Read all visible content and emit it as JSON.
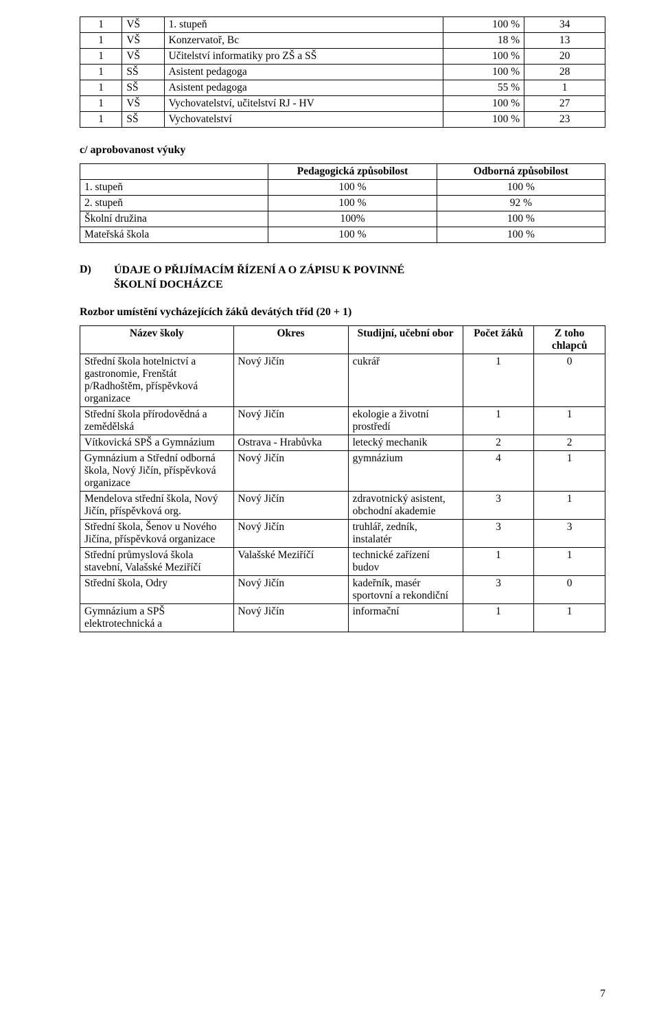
{
  "table1": {
    "rows": [
      [
        "1",
        "VŠ",
        "1. stupeň",
        "100 %",
        "34"
      ],
      [
        "1",
        "VŠ",
        "Konzervatoř, Bc",
        "18 %",
        "13"
      ],
      [
        "1",
        "VŠ",
        "Učitelství informatiky pro ZŠ a SŠ",
        "100 %",
        "20"
      ],
      [
        "1",
        "SŠ",
        "Asistent pedagoga",
        "100 %",
        "28"
      ],
      [
        "1",
        "SŠ",
        "Asistent pedagoga",
        "55 %",
        "1"
      ],
      [
        "1",
        "VŠ",
        "Vychovatelství, učitelství RJ - HV",
        "100 %",
        "27"
      ],
      [
        "1",
        "SŠ",
        "Vychovatelství",
        "100 %",
        "23"
      ]
    ]
  },
  "section_c": "c/ aprobovanost výuky",
  "table2": {
    "header": [
      "",
      "Pedagogická způsobilost",
      "Odborná způsobilost"
    ],
    "rows": [
      [
        "1. stupeň",
        "100 %",
        "100 %"
      ],
      [
        "2. stupeň",
        "100 %",
        "92 %"
      ],
      [
        "Školní družina",
        "100%",
        "100 %"
      ],
      [
        "Mateřská škola",
        "100 %",
        "100 %"
      ]
    ]
  },
  "section_d": {
    "label": "D)",
    "title_line1": "ÚDAJE O PŘIJÍMACÍM ŘÍZENÍ A O ZÁPISU K POVINNÉ",
    "title_line2": "ŠKOLNÍ DOCHÁZCE",
    "rozbor": "Rozbor umístění vycházejících žáků devátých tříd (20 + 1)"
  },
  "table3": {
    "header": [
      "Název školy",
      "Okres",
      "Studijní, učební obor",
      "Počet žáků",
      "Z  toho chlapců"
    ],
    "rows": [
      [
        "Střední škola hotelnictví a gastronomie,\nFrenštát p/Radhoštěm, příspěvková organizace",
        "Nový Jičín",
        "cukrář",
        "1",
        "0"
      ],
      [
        "Střední škola přírodovědná a zemědělská",
        "Nový Jičín",
        "ekologie a životní prostředí",
        "1",
        "1"
      ],
      [
        "Vítkovická SPŠ a Gymnázium",
        "Ostrava - Hrabůvka",
        "letecký mechanik",
        "2",
        "2"
      ],
      [
        "Gymnázium a Střední odborná škola, Nový Jičín, příspěvková organizace",
        "Nový Jičín",
        "gymnázium",
        "4",
        "1"
      ],
      [
        "Mendelova střední škola, Nový Jičín, příspěvková org.",
        "Nový Jičín",
        "zdravotnický asistent, obchodní akademie",
        "3",
        "1"
      ],
      [
        "Střední škola, Šenov u Nového Jičína, příspěvková organizace",
        "Nový Jičín",
        "truhlář, zedník, instalatér",
        "3",
        "3"
      ],
      [
        "Střední průmyslová škola stavební, Valašské Meziříčí",
        "Valašské Meziříčí",
        "technické zařízení budov",
        "1",
        "1"
      ],
      [
        "Střední škola, Odry",
        "Nový Jičín",
        "kadeřník, masér sportovní a rekondiční",
        "3",
        "0"
      ],
      [
        "Gymnázium a SPŠ elektrotechnická a",
        "Nový Jičín",
        "informační",
        "1",
        "1"
      ]
    ]
  },
  "page_number": "7"
}
